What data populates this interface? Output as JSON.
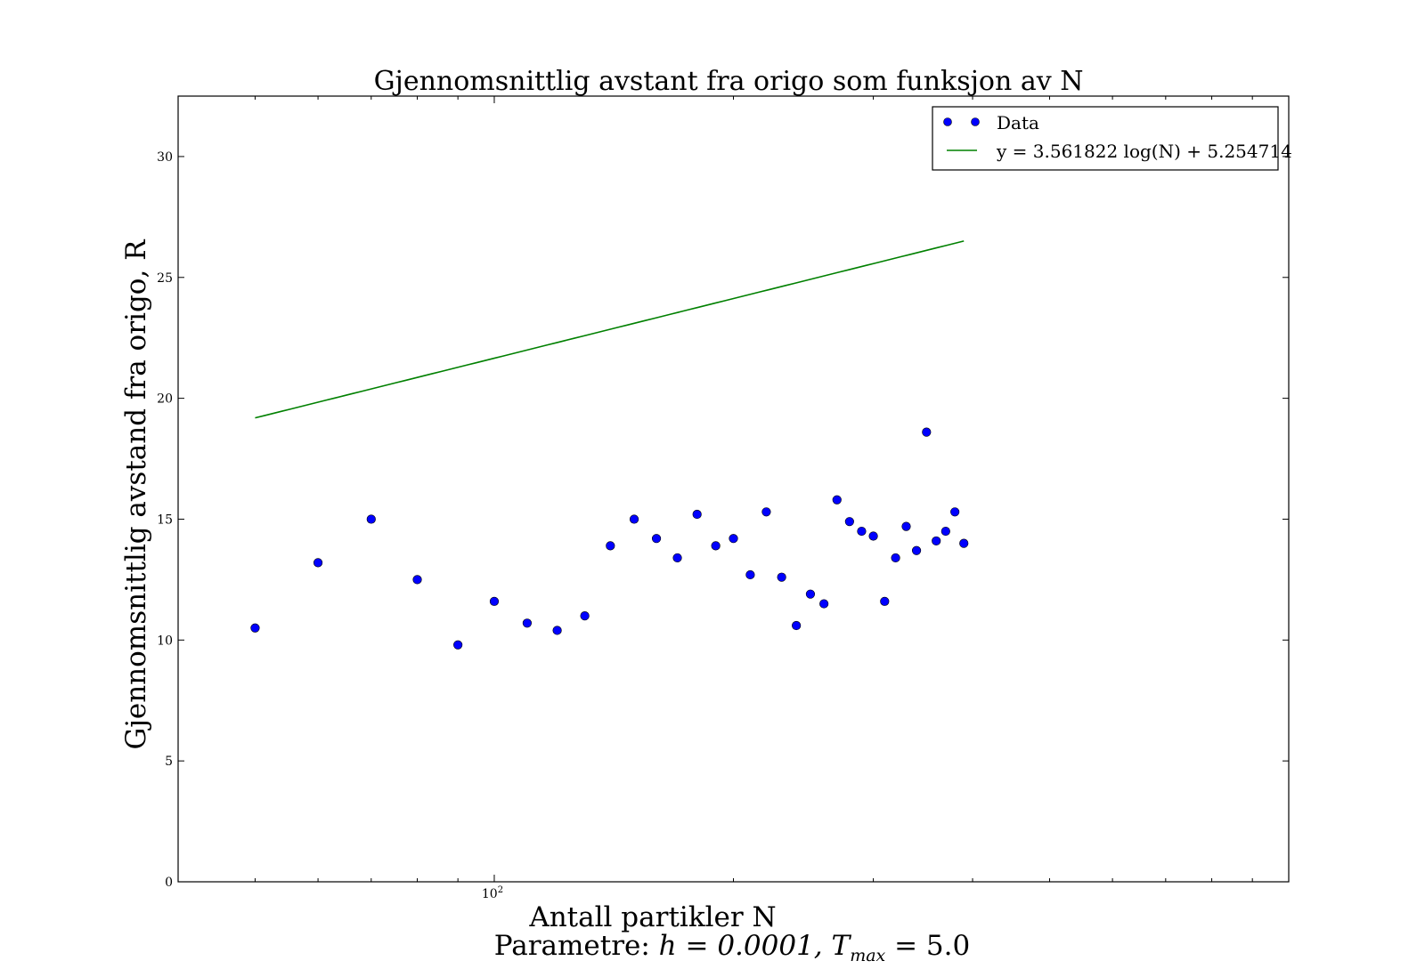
{
  "chart_data": {
    "type": "scatter",
    "title": "Gjennomsnittlig avstant fra origo som funksjon av N",
    "xlabel": "Antall partikler N",
    "ylabel": "Gjennomsnittlig avstand fra origo, R",
    "params_prefix": "Parametre: ",
    "params_math": "h = 0.0001, T",
    "params_sub": "max",
    "params_math_tail": " = 5.0",
    "x_scale": "log",
    "xlim": [
      40,
      1000
    ],
    "ylim": [
      0,
      32.5
    ],
    "grid": false,
    "legend_position": "top-right",
    "y_ticks": [
      0,
      5,
      10,
      15,
      20,
      25,
      30
    ],
    "x_tick_major": {
      "value": 100,
      "base": "10",
      "exponent": "2"
    },
    "x_minor_ticks": [
      50,
      60,
      70,
      80,
      90,
      200,
      300,
      400,
      500,
      600,
      700,
      800,
      900
    ],
    "series": [
      {
        "name": "Data",
        "kind": "scatter",
        "color": "#0000ff",
        "x": [
          50,
          60,
          70,
          80,
          90,
          100,
          110,
          120,
          130,
          140,
          150,
          160,
          170,
          180,
          190,
          200,
          210,
          220,
          230,
          240,
          250,
          260,
          270,
          280,
          290,
          300,
          310,
          320,
          330,
          340,
          350,
          360,
          370,
          380,
          390
        ],
        "y": [
          10.5,
          13.2,
          15.0,
          12.5,
          9.8,
          11.6,
          10.7,
          10.4,
          11.0,
          13.9,
          15.0,
          14.2,
          13.4,
          15.2,
          13.9,
          14.2,
          12.7,
          15.3,
          12.6,
          10.6,
          11.9,
          11.5,
          15.8,
          14.9,
          14.5,
          14.3,
          11.6,
          13.4,
          14.7,
          13.7,
          18.6,
          14.1,
          14.5,
          15.3,
          14.0
        ]
      },
      {
        "name": "y = 3.561822 log(N) + 5.254714",
        "kind": "line",
        "color": "#008000",
        "slope": 3.561822,
        "intercept": 5.254714,
        "x_range": [
          50,
          390
        ]
      }
    ]
  }
}
